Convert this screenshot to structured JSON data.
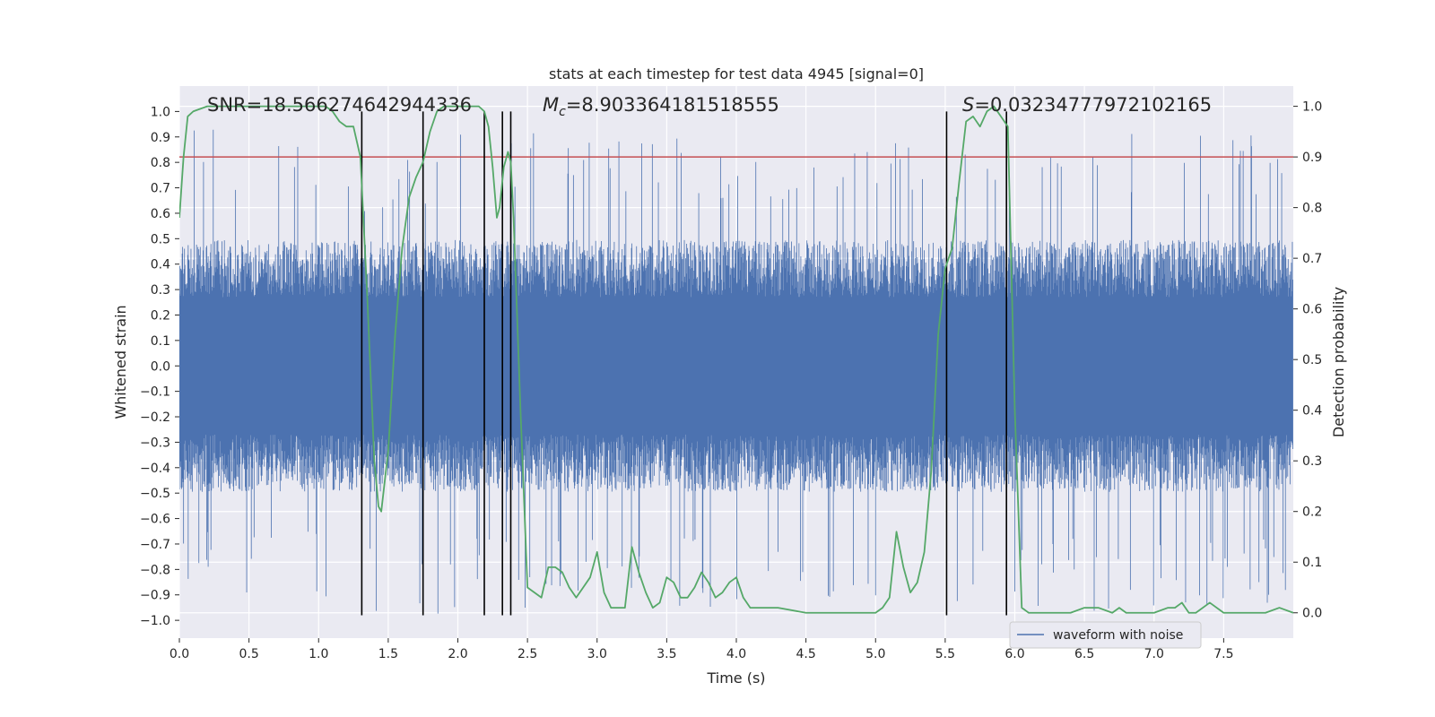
{
  "chart_data": {
    "type": "line",
    "title": "stats at each timestep for test data 4945 [signal=0]",
    "xlabel": "Time (s)",
    "ylabel": "Whitened strain",
    "y2label": "Detection probability",
    "xlim": [
      0,
      8.0
    ],
    "ylim": [
      -1.07,
      1.1
    ],
    "y2lim": [
      -0.05,
      1.04
    ],
    "xticks": [
      0.0,
      0.5,
      1.0,
      1.5,
      2.0,
      2.5,
      3.0,
      3.5,
      4.0,
      4.5,
      5.0,
      5.5,
      6.0,
      6.5,
      7.0,
      7.5
    ],
    "xtick_labels": [
      "0.0",
      "0.5",
      "1.0",
      "1.5",
      "2.0",
      "2.5",
      "3.0",
      "3.5",
      "4.0",
      "4.5",
      "5.0",
      "5.5",
      "6.0",
      "6.5",
      "7.0",
      "7.5"
    ],
    "yticks": [
      -1.0,
      -0.9,
      -0.8,
      -0.7,
      -0.6,
      -0.5,
      -0.4,
      -0.3,
      -0.2,
      -0.1,
      0.0,
      0.1,
      0.2,
      0.3,
      0.4,
      0.5,
      0.6,
      0.7,
      0.8,
      0.9,
      1.0
    ],
    "ytick_labels": [
      "−1.0",
      "−0.9",
      "−0.8",
      "−0.7",
      "−0.6",
      "−0.5",
      "−0.4",
      "−0.3",
      "−0.2",
      "−0.1",
      "0.0",
      "0.1",
      "0.2",
      "0.3",
      "0.4",
      "0.5",
      "0.6",
      "0.7",
      "0.8",
      "0.9",
      "1.0"
    ],
    "y2ticks": [
      0.0,
      0.1,
      0.2,
      0.3,
      0.4,
      0.5,
      0.6,
      0.7,
      0.8,
      0.9,
      1.0
    ],
    "y2tick_labels": [
      "0.0",
      "0.1",
      "0.2",
      "0.3",
      "0.4",
      "0.5",
      "0.6",
      "0.7",
      "0.8",
      "0.9",
      "1.0"
    ],
    "annotations": {
      "snr": "SNR=18.566274642944336",
      "mc_symbol": "M",
      "mc_sub": "c",
      "mc_value": "=8.903364181518555",
      "s_symbol": "S",
      "s_value": "=0.03234777972102165"
    },
    "threshold": {
      "value": 0.9,
      "axis": "right",
      "color": "#c44e52"
    },
    "vertical_lines": [
      1.31,
      1.75,
      2.19,
      2.32,
      2.38,
      5.51,
      5.94
    ],
    "vertical_line_range": [
      -0.98,
      1.0
    ],
    "series": [
      {
        "name": "waveform with noise",
        "axis": "left",
        "color": "#4c72b0",
        "style": "noise",
        "envelope": {
          "x": [
            0.0,
            1.0,
            2.0,
            3.0,
            4.0,
            5.0,
            6.0,
            7.0,
            8.0
          ],
          "upper": [
            0.45,
            0.45,
            0.45,
            0.45,
            0.45,
            0.45,
            0.45,
            0.45,
            0.45
          ],
          "lower": [
            -0.45,
            -0.45,
            -0.45,
            -0.45,
            -0.45,
            -0.45,
            -0.45,
            -0.45,
            -0.45
          ]
        },
        "peak_max": [
          0.93,
          0.84,
          0.93,
          0.94,
          0.93,
          0.91,
          0.94,
          0.91,
          0.91
        ],
        "peak_min": [
          -0.93,
          -0.98,
          -0.97,
          -0.95,
          -0.95,
          -0.96,
          -0.97,
          -0.95,
          -0.95
        ]
      },
      {
        "axis": "right",
        "color": "#55a868",
        "x": [
          0.0,
          0.03,
          0.06,
          0.1,
          0.2,
          0.3,
          0.4,
          0.5,
          0.6,
          0.7,
          0.8,
          0.9,
          1.0,
          1.05,
          1.1,
          1.15,
          1.2,
          1.25,
          1.3,
          1.35,
          1.4,
          1.43,
          1.45,
          1.5,
          1.55,
          1.6,
          1.65,
          1.7,
          1.75,
          1.8,
          1.85,
          1.9,
          2.0,
          2.1,
          2.15,
          2.19,
          2.22,
          2.25,
          2.28,
          2.3,
          2.33,
          2.36,
          2.38,
          2.4,
          2.45,
          2.5,
          2.55,
          2.6,
          2.65,
          2.7,
          2.75,
          2.8,
          2.85,
          2.9,
          2.95,
          3.0,
          3.05,
          3.1,
          3.15,
          3.2,
          3.25,
          3.3,
          3.35,
          3.4,
          3.45,
          3.5,
          3.55,
          3.6,
          3.65,
          3.7,
          3.75,
          3.8,
          3.85,
          3.9,
          3.95,
          4.0,
          4.05,
          4.1,
          4.3,
          4.5,
          4.7,
          4.9,
          5.0,
          5.05,
          5.1,
          5.15,
          5.2,
          5.25,
          5.3,
          5.35,
          5.4,
          5.45,
          5.5,
          5.55,
          5.6,
          5.65,
          5.7,
          5.75,
          5.8,
          5.85,
          5.9,
          5.95,
          6.0,
          6.05,
          6.1,
          6.2,
          6.3,
          6.4,
          6.5,
          6.6,
          6.7,
          6.75,
          6.8,
          6.9,
          7.0,
          7.1,
          7.15,
          7.2,
          7.25,
          7.3,
          7.4,
          7.5,
          7.6,
          7.7,
          7.8,
          7.9,
          8.0
        ],
        "y": [
          0.78,
          0.9,
          0.98,
          0.99,
          1.0,
          1.0,
          1.0,
          1.0,
          1.0,
          1.0,
          1.0,
          1.0,
          1.0,
          1.0,
          0.99,
          0.97,
          0.96,
          0.96,
          0.9,
          0.62,
          0.3,
          0.21,
          0.2,
          0.32,
          0.55,
          0.72,
          0.82,
          0.86,
          0.89,
          0.95,
          0.99,
          1.0,
          1.0,
          1.0,
          1.0,
          0.99,
          0.96,
          0.88,
          0.78,
          0.8,
          0.88,
          0.91,
          0.89,
          0.78,
          0.4,
          0.05,
          0.04,
          0.03,
          0.09,
          0.09,
          0.08,
          0.05,
          0.03,
          0.05,
          0.07,
          0.12,
          0.04,
          0.01,
          0.01,
          0.01,
          0.13,
          0.08,
          0.04,
          0.01,
          0.02,
          0.07,
          0.06,
          0.03,
          0.03,
          0.05,
          0.08,
          0.06,
          0.03,
          0.04,
          0.06,
          0.07,
          0.03,
          0.01,
          0.01,
          0.0,
          0.0,
          0.0,
          0.0,
          0.01,
          0.03,
          0.16,
          0.09,
          0.04,
          0.06,
          0.12,
          0.28,
          0.55,
          0.68,
          0.72,
          0.85,
          0.97,
          0.98,
          0.96,
          0.99,
          1.0,
          0.98,
          0.96,
          0.4,
          0.01,
          0.0,
          0.0,
          0.0,
          0.0,
          0.01,
          0.01,
          0.0,
          0.01,
          0.0,
          0.0,
          0.0,
          0.01,
          0.01,
          0.02,
          0.0,
          0.0,
          0.02,
          0.0,
          0.0,
          0.0,
          0.0,
          0.01,
          0.0
        ]
      }
    ],
    "legend": {
      "position": "bottom-right"
    }
  }
}
